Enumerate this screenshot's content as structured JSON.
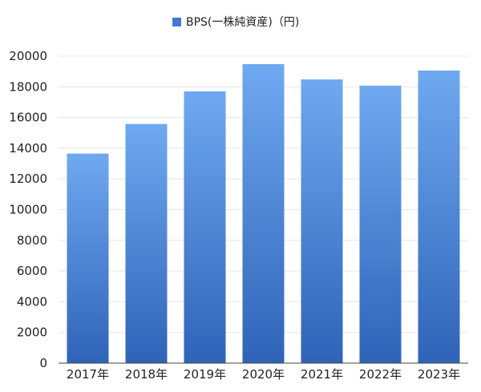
{
  "chart_data": {
    "type": "bar",
    "categories": [
      "2017年",
      "2018年",
      "2019年",
      "2020年",
      "2021年",
      "2022年",
      "2023年"
    ],
    "series": [
      {
        "name": "BPS(一株純資産)（円)",
        "values": [
          13650,
          15580,
          17700,
          19480,
          18480,
          18080,
          19060
        ]
      }
    ],
    "ylim": [
      0,
      20000
    ],
    "yticks": [
      0,
      2000,
      4000,
      6000,
      8000,
      10000,
      12000,
      14000,
      16000,
      18000,
      20000
    ],
    "grid": true,
    "legend_position": "top-center",
    "colors": {
      "bar_top": "#6fa9f0",
      "bar_bottom": "#2f63b8",
      "legend_swatch": "#3f7bd0",
      "grid": "#e6e6e6",
      "axis": "#444444"
    }
  }
}
